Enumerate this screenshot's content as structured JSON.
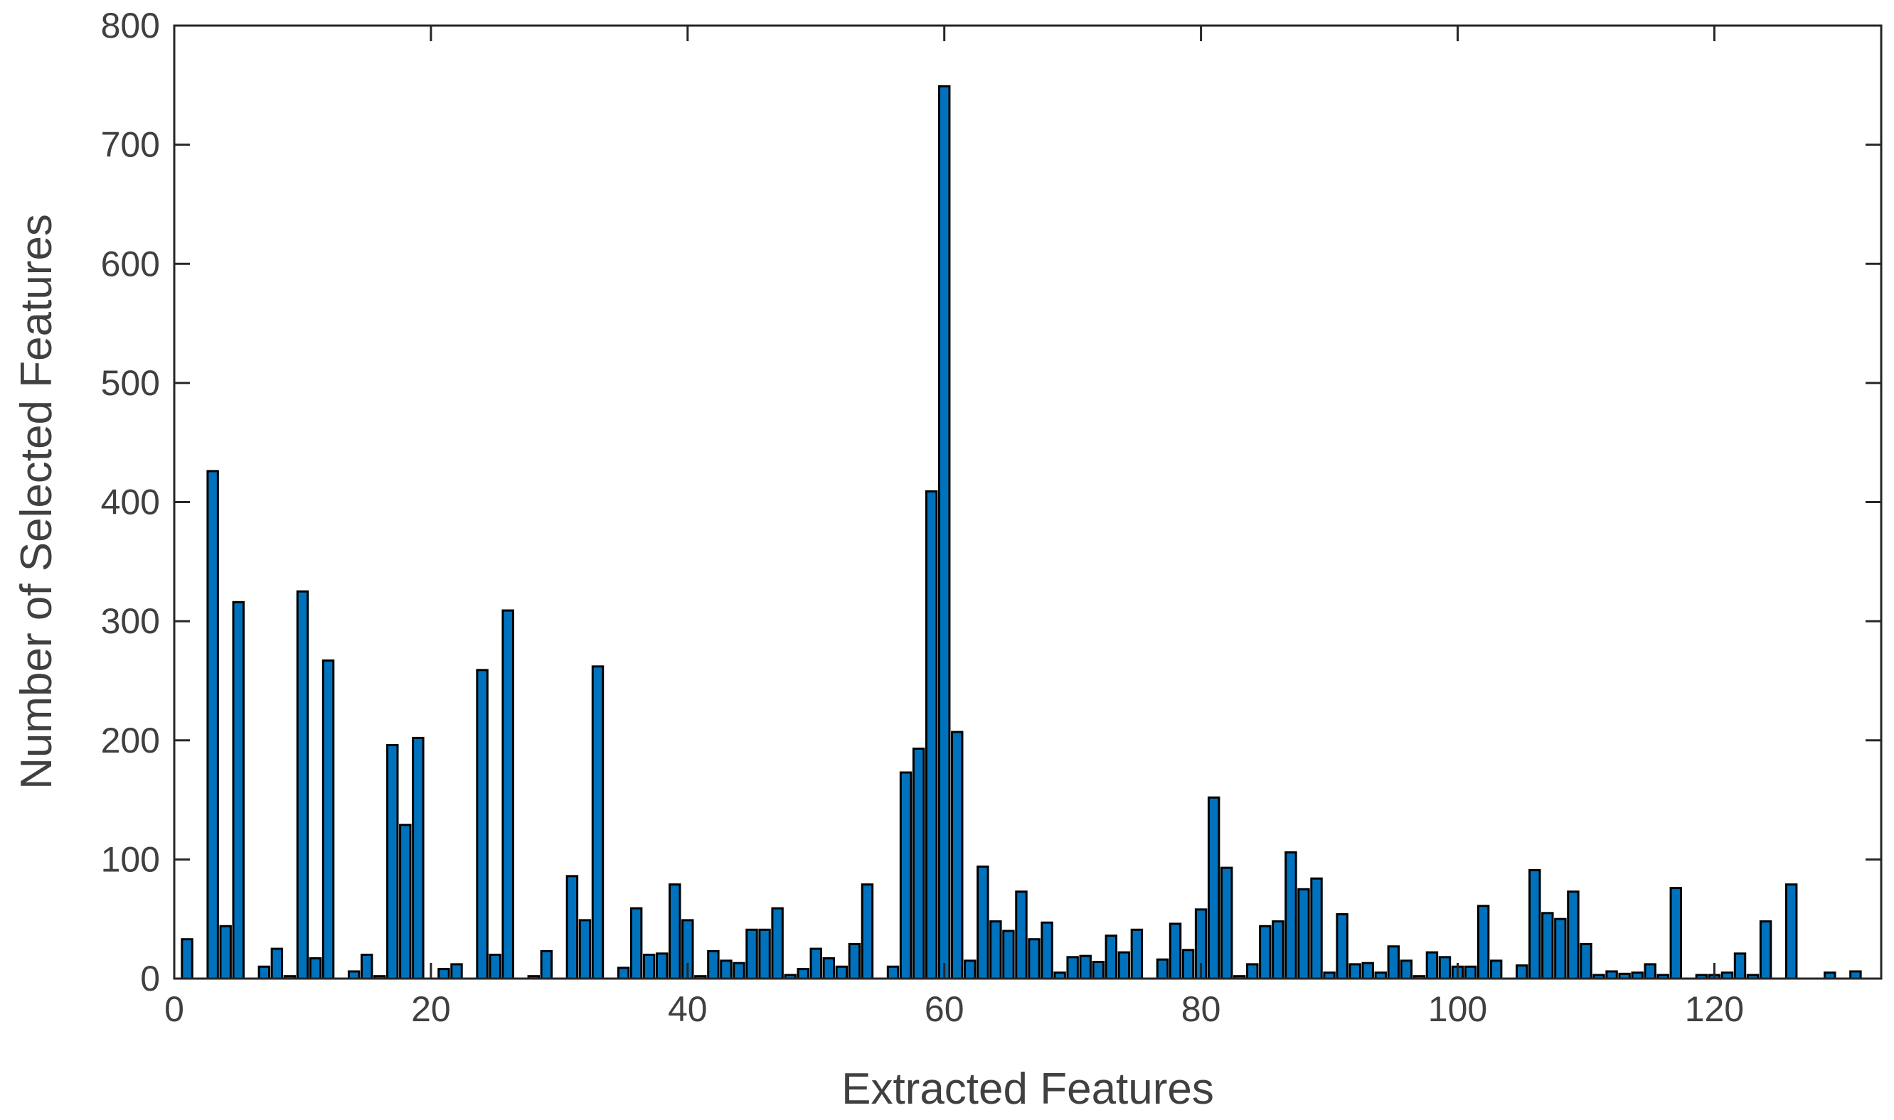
{
  "chart_data": {
    "type": "bar",
    "title": "",
    "xlabel": "Extracted Features",
    "ylabel": "Number of Selected Features",
    "xlim": [
      0,
      133
    ],
    "ylim": [
      0,
      800
    ],
    "xticks": [
      0,
      20,
      40,
      60,
      80,
      100,
      120
    ],
    "yticks": [
      0,
      100,
      200,
      300,
      400,
      500,
      600,
      700,
      800
    ],
    "grid": false,
    "legend": "none",
    "bar_color": "#0072BD",
    "edge_color": "#000000",
    "x": [
      1,
      2,
      3,
      4,
      5,
      6,
      7,
      8,
      9,
      10,
      11,
      12,
      13,
      14,
      15,
      16,
      17,
      18,
      19,
      20,
      21,
      22,
      23,
      24,
      25,
      26,
      27,
      28,
      29,
      30,
      31,
      32,
      33,
      34,
      35,
      36,
      37,
      38,
      39,
      40,
      41,
      42,
      43,
      44,
      45,
      46,
      47,
      48,
      49,
      50,
      51,
      52,
      53,
      54,
      55,
      56,
      57,
      58,
      59,
      60,
      61,
      62,
      63,
      64,
      65,
      66,
      67,
      68,
      69,
      70,
      71,
      72,
      73,
      74,
      75,
      76,
      77,
      78,
      79,
      80,
      81,
      82,
      83,
      84,
      85,
      86,
      87,
      88,
      89,
      90,
      91,
      92,
      93,
      94,
      95,
      96,
      97,
      98,
      99,
      100,
      101,
      102,
      103,
      104,
      105,
      106,
      107,
      108,
      109,
      110,
      111,
      112,
      113,
      114,
      115,
      116,
      117,
      118,
      119,
      120,
      121,
      122,
      123,
      124,
      125,
      126,
      127,
      128,
      129,
      130,
      131,
      132
    ],
    "values": [
      33,
      0,
      426,
      44,
      316,
      0,
      10,
      25,
      2,
      325,
      17,
      267,
      0,
      6,
      20,
      2,
      196,
      129,
      202,
      0,
      8,
      12,
      0,
      259,
      20,
      309,
      0,
      2,
      23,
      0,
      86,
      49,
      262,
      0,
      9,
      59,
      20,
      21,
      79,
      49,
      2,
      23,
      15,
      13,
      41,
      41,
      59,
      3,
      8,
      25,
      17,
      10,
      29,
      79,
      0,
      10,
      173,
      193,
      409,
      749,
      207,
      15,
      94,
      48,
      40,
      73,
      33,
      47,
      5,
      18,
      19,
      14,
      36,
      22,
      41,
      0,
      16,
      46,
      24,
      58,
      152,
      93,
      2,
      12,
      44,
      48,
      106,
      75,
      84,
      5,
      54,
      12,
      13,
      5,
      27,
      15,
      2,
      22,
      18,
      10,
      10,
      61,
      15,
      0,
      11,
      91,
      55,
      50,
      73,
      29,
      3,
      6,
      4,
      5,
      12,
      3,
      76,
      0,
      3,
      3,
      5,
      21,
      3,
      48,
      0,
      79,
      0,
      0,
      5,
      0,
      6,
      0
    ]
  }
}
